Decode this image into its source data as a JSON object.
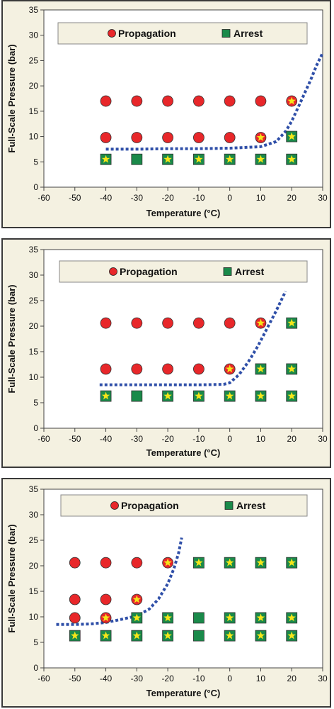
{
  "chart_data": [
    {
      "type": "scatter",
      "xlabel": "Temperature (°C)",
      "ylabel": "Full-Scale Pressure (bar)",
      "xlim": [
        -60,
        30
      ],
      "ylim": [
        0,
        35
      ],
      "xticks": [
        "-60",
        "-50",
        "-40",
        "-30",
        "-20",
        "-10",
        "0",
        "10",
        "20",
        "30"
      ],
      "yticks": [
        "0",
        "5",
        "10",
        "15",
        "20",
        "25",
        "30",
        "35"
      ],
      "legend": [
        "Propagation",
        "Arrest"
      ],
      "legend_position": "top",
      "grid": false,
      "series": [
        {
          "name": "Propagation",
          "marker": "circle",
          "color": "#e8272a",
          "points": [
            {
              "x": -40,
              "y": 17,
              "star": false
            },
            {
              "x": -30,
              "y": 17,
              "star": false
            },
            {
              "x": -20,
              "y": 17,
              "star": false
            },
            {
              "x": -10,
              "y": 17,
              "star": false
            },
            {
              "x": 0,
              "y": 17,
              "star": false
            },
            {
              "x": 10,
              "y": 17,
              "star": false
            },
            {
              "x": 20,
              "y": 17,
              "star": true
            },
            {
              "x": -40,
              "y": 9.8,
              "star": false
            },
            {
              "x": -30,
              "y": 9.8,
              "star": false
            },
            {
              "x": -20,
              "y": 9.8,
              "star": false
            },
            {
              "x": -10,
              "y": 9.8,
              "star": false
            },
            {
              "x": 0,
              "y": 9.8,
              "star": false
            },
            {
              "x": 10,
              "y": 9.8,
              "star": true
            }
          ]
        },
        {
          "name": "Arrest",
          "marker": "square",
          "color": "#1a8a4a",
          "points": [
            {
              "x": 20,
              "y": 10,
              "star": true
            },
            {
              "x": -40,
              "y": 5.5,
              "star": true
            },
            {
              "x": -30,
              "y": 5.5,
              "star": false
            },
            {
              "x": -20,
              "y": 5.5,
              "star": true
            },
            {
              "x": -10,
              "y": 5.5,
              "star": true
            },
            {
              "x": 0,
              "y": 5.5,
              "star": true
            },
            {
              "x": 10,
              "y": 5.5,
              "star": true
            },
            {
              "x": 20,
              "y": 5.5,
              "star": true
            }
          ]
        }
      ],
      "boundary_curve": {
        "style": "dashed",
        "color": "#2f4fa8",
        "points": [
          [
            -40,
            7.5
          ],
          [
            -30,
            7.5
          ],
          [
            -20,
            7.6
          ],
          [
            -10,
            7.6
          ],
          [
            0,
            7.7
          ],
          [
            10,
            8.0
          ],
          [
            15,
            9
          ],
          [
            18,
            11
          ],
          [
            20,
            13
          ],
          [
            23,
            17
          ],
          [
            26,
            21
          ],
          [
            28,
            24
          ],
          [
            30,
            26.5
          ]
        ]
      }
    },
    {
      "type": "scatter",
      "xlabel": "Temperature (°C)",
      "ylabel": "Full-Scale Pressure (bar)",
      "xlim": [
        -60,
        30
      ],
      "ylim": [
        0,
        35
      ],
      "xticks": [
        "-60",
        "-50",
        "-40",
        "-30",
        "-20",
        "-10",
        "0",
        "10",
        "20",
        "30"
      ],
      "yticks": [
        "0",
        "5",
        "10",
        "15",
        "20",
        "25",
        "30",
        "35"
      ],
      "legend": [
        "Propagation",
        "Arrest"
      ],
      "legend_position": "top",
      "grid": false,
      "series": [
        {
          "name": "Propagation",
          "marker": "circle",
          "color": "#e8272a",
          "points": [
            {
              "x": -40,
              "y": 20.6,
              "star": false
            },
            {
              "x": -30,
              "y": 20.6,
              "star": false
            },
            {
              "x": -20,
              "y": 20.6,
              "star": false
            },
            {
              "x": -10,
              "y": 20.6,
              "star": false
            },
            {
              "x": 0,
              "y": 20.6,
              "star": false
            },
            {
              "x": 10,
              "y": 20.6,
              "star": true
            },
            {
              "x": -40,
              "y": 11.6,
              "star": false
            },
            {
              "x": -30,
              "y": 11.6,
              "star": false
            },
            {
              "x": -20,
              "y": 11.6,
              "star": false
            },
            {
              "x": -10,
              "y": 11.6,
              "star": false
            },
            {
              "x": 0,
              "y": 11.6,
              "star": true
            }
          ]
        },
        {
          "name": "Arrest",
          "marker": "square",
          "color": "#1a8a4a",
          "points": [
            {
              "x": 20,
              "y": 20.6,
              "star": true
            },
            {
              "x": 10,
              "y": 11.6,
              "star": true
            },
            {
              "x": 20,
              "y": 11.6,
              "star": true
            },
            {
              "x": -40,
              "y": 6.3,
              "star": true
            },
            {
              "x": -30,
              "y": 6.3,
              "star": false
            },
            {
              "x": -20,
              "y": 6.3,
              "star": true
            },
            {
              "x": -10,
              "y": 6.3,
              "star": true
            },
            {
              "x": 0,
              "y": 6.3,
              "star": true
            },
            {
              "x": 10,
              "y": 6.3,
              "star": true
            },
            {
              "x": 20,
              "y": 6.3,
              "star": true
            }
          ]
        }
      ],
      "boundary_curve": {
        "style": "dashed",
        "color": "#2f4fa8",
        "points": [
          [
            -42,
            8.5
          ],
          [
            -30,
            8.5
          ],
          [
            -20,
            8.5
          ],
          [
            -10,
            8.5
          ],
          [
            -2,
            8.6
          ],
          [
            0,
            8.9
          ],
          [
            3,
            10.5
          ],
          [
            6,
            13
          ],
          [
            9,
            16
          ],
          [
            12,
            19.5
          ],
          [
            15,
            23
          ],
          [
            18,
            26.8
          ]
        ]
      }
    },
    {
      "type": "scatter",
      "xlabel": "Temperature (°C)",
      "ylabel": "Full-Scale  Pressure (bar)",
      "xlim": [
        -60,
        30
      ],
      "ylim": [
        0,
        35
      ],
      "xticks": [
        "-60",
        "-50",
        "-40",
        "-30",
        "-20",
        "-10",
        "0",
        "10",
        "20",
        "30"
      ],
      "yticks": [
        "0",
        "5",
        "10",
        "15",
        "20",
        "25",
        "30",
        "35"
      ],
      "legend": [
        "Propagation",
        "Arrest"
      ],
      "legend_position": "top",
      "grid": false,
      "series": [
        {
          "name": "Propagation",
          "marker": "circle",
          "color": "#e8272a",
          "points": [
            {
              "x": -50,
              "y": 20.6,
              "star": false
            },
            {
              "x": -40,
              "y": 20.6,
              "star": false
            },
            {
              "x": -30,
              "y": 20.6,
              "star": false
            },
            {
              "x": -20,
              "y": 20.6,
              "star": true
            },
            {
              "x": -50,
              "y": 13.4,
              "star": false
            },
            {
              "x": -40,
              "y": 13.4,
              "star": false
            },
            {
              "x": -30,
              "y": 13.4,
              "star": true
            },
            {
              "x": -50,
              "y": 9.8,
              "star": false
            },
            {
              "x": -40,
              "y": 9.8,
              "star": true
            }
          ]
        },
        {
          "name": "Arrest",
          "marker": "square",
          "color": "#1a8a4a",
          "points": [
            {
              "x": -10,
              "y": 20.6,
              "star": true
            },
            {
              "x": 0,
              "y": 20.6,
              "star": true
            },
            {
              "x": 10,
              "y": 20.6,
              "star": true
            },
            {
              "x": 20,
              "y": 20.6,
              "star": true
            },
            {
              "x": -30,
              "y": 9.8,
              "star": true
            },
            {
              "x": -20,
              "y": 9.8,
              "star": true
            },
            {
              "x": -10,
              "y": 9.8,
              "star": false
            },
            {
              "x": 0,
              "y": 9.8,
              "star": true
            },
            {
              "x": 10,
              "y": 9.8,
              "star": true
            },
            {
              "x": 20,
              "y": 9.8,
              "star": true
            },
            {
              "x": -50,
              "y": 6.3,
              "star": true
            },
            {
              "x": -40,
              "y": 6.3,
              "star": true
            },
            {
              "x": -30,
              "y": 6.3,
              "star": true
            },
            {
              "x": -20,
              "y": 6.3,
              "star": true
            },
            {
              "x": -10,
              "y": 6.3,
              "star": false
            },
            {
              "x": 0,
              "y": 6.3,
              "star": true
            },
            {
              "x": 10,
              "y": 6.3,
              "star": true
            },
            {
              "x": 20,
              "y": 6.3,
              "star": true
            }
          ]
        }
      ],
      "boundary_curve": {
        "style": "dashed",
        "color": "#2f4fa8",
        "points": [
          [
            -56,
            8.5
          ],
          [
            -50,
            8.5
          ],
          [
            -45,
            8.6
          ],
          [
            -40,
            8.9
          ],
          [
            -35,
            9.5
          ],
          [
            -30,
            10.2
          ],
          [
            -26,
            11.5
          ],
          [
            -23,
            13.5
          ],
          [
            -20,
            16.5
          ],
          [
            -18,
            19.5
          ],
          [
            -16.5,
            22.5
          ],
          [
            -15.5,
            25.5
          ]
        ]
      }
    }
  ]
}
